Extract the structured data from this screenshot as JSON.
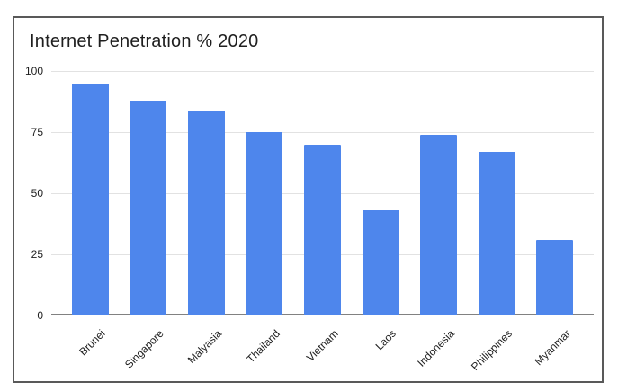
{
  "chart_data": {
    "type": "bar",
    "title": "Internet Penetration % 2020",
    "categories": [
      "Brunei",
      "Singapore",
      "Malyasia",
      "Thailand",
      "Vietnam",
      "Laos",
      "Indonesia",
      "Philippines",
      "Myanmar"
    ],
    "values": [
      95,
      88,
      84,
      75,
      70,
      43,
      74,
      67,
      31
    ],
    "xlabel": "",
    "ylabel": "",
    "ylim": [
      0,
      100
    ],
    "yticks": [
      0,
      25,
      50,
      75,
      100
    ],
    "grid": true,
    "legend": "none",
    "x_label_rotation_deg": -45,
    "colors": {
      "bar": "#4e86ec",
      "gridline": "#e2e2e2",
      "baseline": "#818181",
      "text": "#1f1f1f",
      "frame_border": "#595959",
      "background": "#ffffff"
    }
  }
}
